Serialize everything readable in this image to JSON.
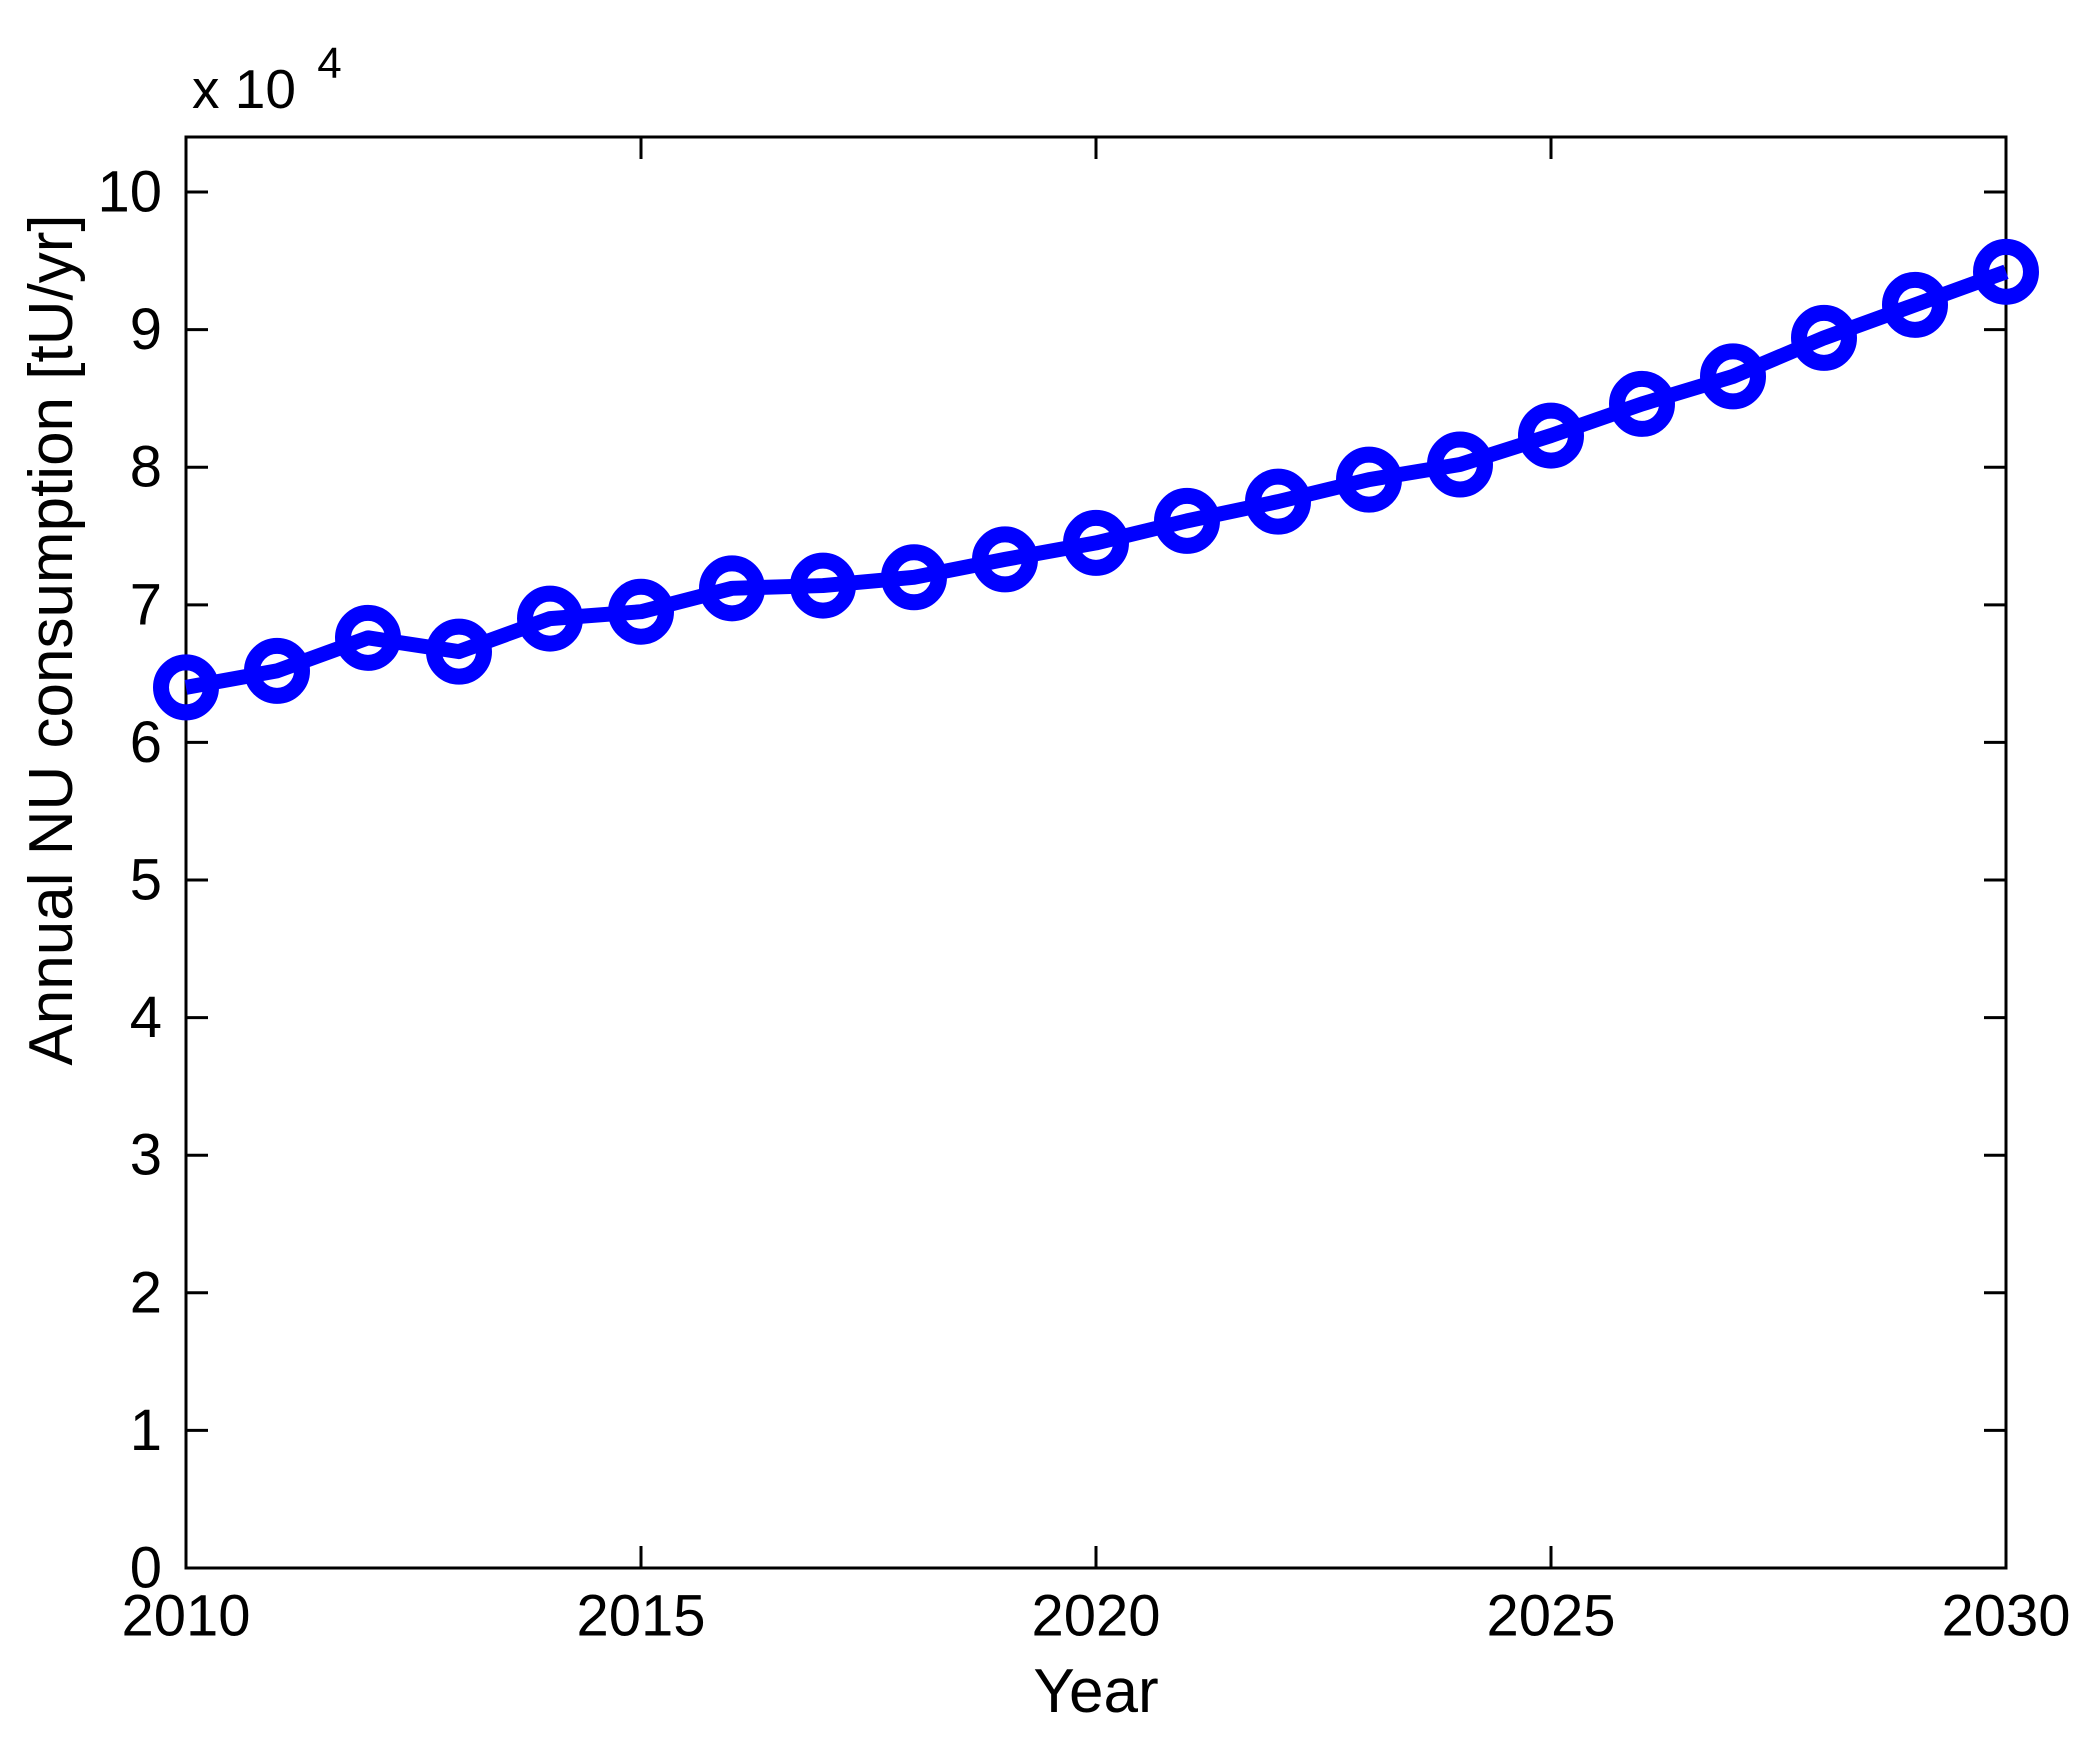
{
  "figure": {
    "background_color": "#ffffff",
    "axis_color": "#000000"
  },
  "chart_data": {
    "type": "line",
    "title": "",
    "xlabel": "Year",
    "ylabel": "Annual NU consumption [tU/yr]",
    "y_axis_multiplier_text": "x 10",
    "y_axis_multiplier_exponent": "4",
    "y_unit_scale": 10000,
    "x": [
      2010,
      2011,
      2012,
      2013,
      2014,
      2015,
      2016,
      2017,
      2018,
      2019,
      2020,
      2021,
      2022,
      2023,
      2024,
      2025,
      2026,
      2027,
      2028,
      2029,
      2030
    ],
    "series": [
      {
        "name": "Annual NU consumption",
        "color": "#0000ff",
        "marker": "open-circle",
        "values": [
          64000,
          65200,
          67600,
          66600,
          69000,
          69500,
          71200,
          71400,
          72000,
          73300,
          74500,
          76100,
          77500,
          79100,
          80200,
          82300,
          84600,
          86600,
          89400,
          91800,
          94200
        ]
      }
    ],
    "xlim": [
      2010,
      2030
    ],
    "ylim": [
      0,
      104000
    ],
    "xticks": [
      2010,
      2015,
      2020,
      2025,
      2030
    ],
    "xtick_labels": [
      "2010",
      "2015",
      "2020",
      "2025",
      "2030"
    ],
    "yticks": [
      0,
      10000,
      20000,
      30000,
      40000,
      50000,
      60000,
      70000,
      80000,
      90000,
      100000
    ],
    "ytick_labels": [
      "0",
      "1",
      "2",
      "3",
      "4",
      "5",
      "6",
      "7",
      "8",
      "9",
      "10"
    ],
    "grid": false,
    "legend_position": "none"
  }
}
